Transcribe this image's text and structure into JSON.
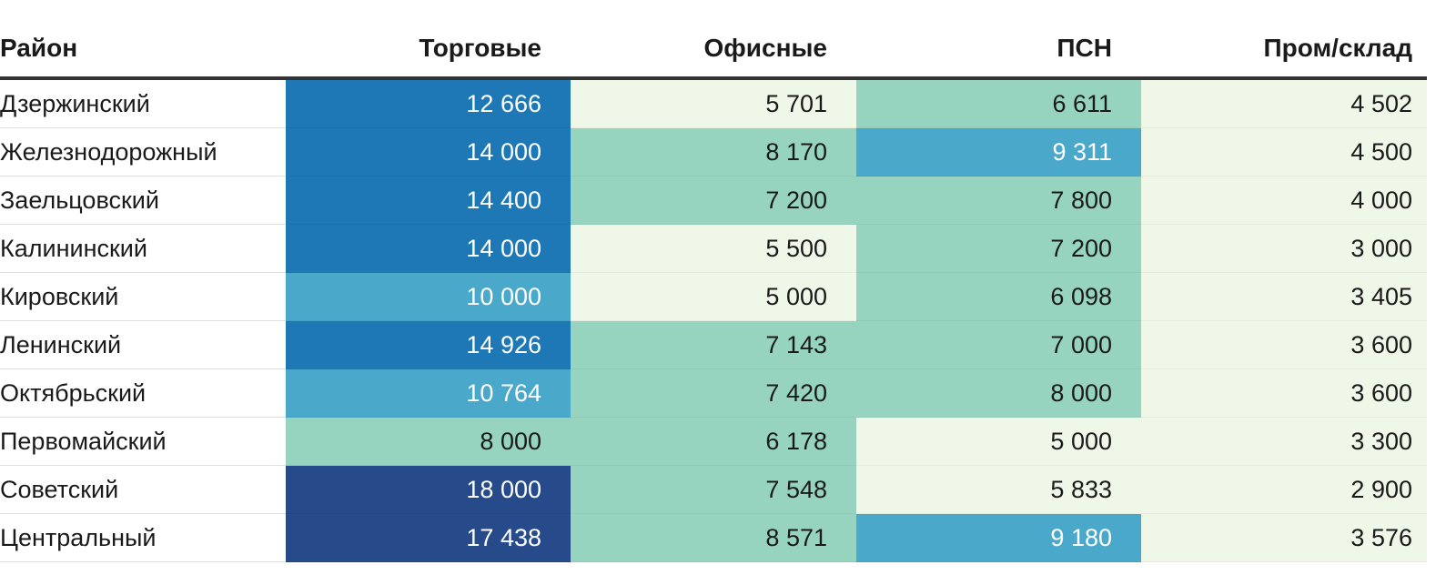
{
  "chart_data": {
    "type": "table",
    "columns": [
      "Район",
      "Торговые",
      "Офисные",
      "ПСН",
      "Пром/склад"
    ],
    "rows": [
      {
        "district": "Дзержинский",
        "values": [
          "12 666",
          "5 701",
          "6 611",
          "4 502"
        ],
        "raw": [
          12666,
          5701,
          6611,
          4502
        ]
      },
      {
        "district": "Железнодорожный",
        "values": [
          "14 000",
          "8 170",
          "9 311",
          "4 500"
        ],
        "raw": [
          14000,
          8170,
          9311,
          4500
        ]
      },
      {
        "district": "Заельцовский",
        "values": [
          "14 400",
          "7 200",
          "7 800",
          "4 000"
        ],
        "raw": [
          14400,
          7200,
          7800,
          4000
        ]
      },
      {
        "district": "Калининский",
        "values": [
          "14 000",
          "5 500",
          "7 200",
          "3 000"
        ],
        "raw": [
          14000,
          5500,
          7200,
          3000
        ]
      },
      {
        "district": "Кировский",
        "values": [
          "10 000",
          "5 000",
          "6 098",
          "3 405"
        ],
        "raw": [
          10000,
          5000,
          6098,
          3405
        ]
      },
      {
        "district": "Ленинский",
        "values": [
          "14 926",
          "7 143",
          "7 000",
          "3 600"
        ],
        "raw": [
          14926,
          7143,
          7000,
          3600
        ]
      },
      {
        "district": "Октябрьский",
        "values": [
          "10 764",
          "7 420",
          "8 000",
          "3 600"
        ],
        "raw": [
          10764,
          7420,
          8000,
          3600
        ]
      },
      {
        "district": "Первомайский",
        "values": [
          "8 000",
          "6 178",
          "5 000",
          "3 300"
        ],
        "raw": [
          8000,
          6178,
          5000,
          3300
        ]
      },
      {
        "district": "Советский",
        "values": [
          "18 000",
          "7 548",
          "5 833",
          "2 900"
        ],
        "raw": [
          18000,
          7548,
          5833,
          2900
        ]
      },
      {
        "district": "Центральный",
        "values": [
          "17 438",
          "8 571",
          "9 180",
          "3 576"
        ],
        "raw": [
          17438,
          8571,
          9180,
          3576
        ]
      }
    ],
    "color_scale": [
      {
        "min": 0,
        "max": 6000,
        "color": "#eff7e8",
        "text": "#1a1a1a"
      },
      {
        "min": 6000,
        "max": 9000,
        "color": "#97d4c0",
        "text": "#1a1a1a"
      },
      {
        "min": 9000,
        "max": 12000,
        "color": "#4aa8cb",
        "text": "#ffffff"
      },
      {
        "min": 12000,
        "max": 16000,
        "color": "#1f78b6",
        "text": "#ffffff"
      },
      {
        "min": 16000,
        "max": 100000,
        "color": "#264a8a",
        "text": "#ffffff"
      }
    ],
    "colors": {
      "header_border": "#333333",
      "row_border": "#e0e0e0",
      "text_dark": "#1a1a1a"
    }
  }
}
